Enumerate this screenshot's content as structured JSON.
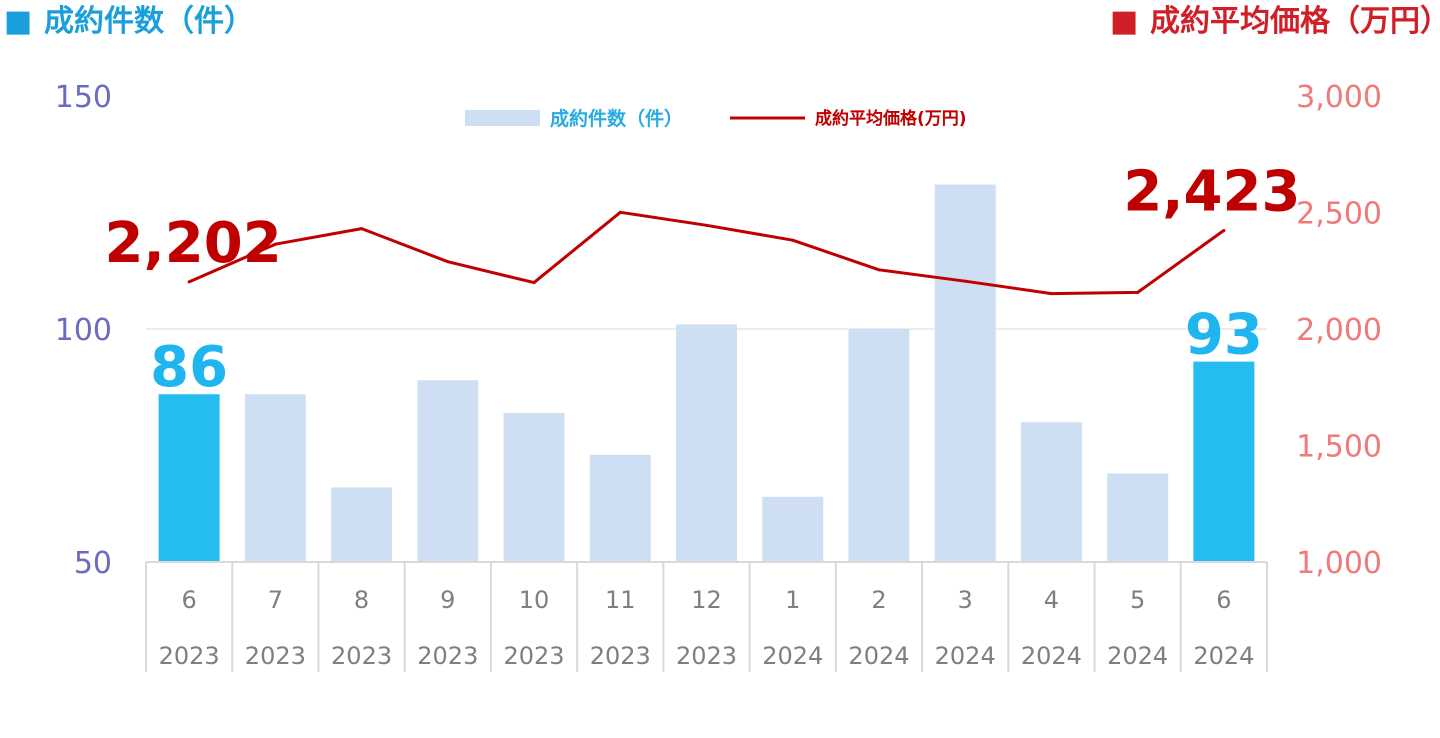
{
  "header": {
    "left_marker": "■",
    "left_title": "成約件数（件）",
    "right_marker": "■",
    "right_title": "成約平均価格（万円）",
    "left_color": "#1a9fdc",
    "right_color": "#d01f26"
  },
  "chart_data": {
    "type": "bar",
    "categories": [
      {
        "month": "6",
        "year": "2023"
      },
      {
        "month": "7",
        "year": "2023"
      },
      {
        "month": "8",
        "year": "2023"
      },
      {
        "month": "9",
        "year": "2023"
      },
      {
        "month": "10",
        "year": "2023"
      },
      {
        "month": "11",
        "year": "2023"
      },
      {
        "month": "12",
        "year": "2023"
      },
      {
        "month": "1",
        "year": "2024"
      },
      {
        "month": "2",
        "year": "2024"
      },
      {
        "month": "3",
        "year": "2024"
      },
      {
        "month": "4",
        "year": "2024"
      },
      {
        "month": "5",
        "year": "2024"
      },
      {
        "month": "6",
        "year": "2024"
      }
    ],
    "series": [
      {
        "name": "成約件数（件）",
        "type": "bar",
        "axis": "left",
        "values": [
          86,
          86,
          66,
          89,
          82,
          73,
          101,
          64,
          100,
          131,
          80,
          69,
          93
        ],
        "color": "#cfdff3",
        "highlight_color": "#25bcf0",
        "highlight_indices": [
          0,
          12
        ]
      },
      {
        "name": "成約平均価格(万円)",
        "type": "line",
        "axis": "right",
        "values": [
          2202,
          2364,
          2431,
          2289,
          2199,
          2501,
          2445,
          2381,
          2254,
          2205,
          2152,
          2157,
          2423
        ],
        "color": "#c00000"
      }
    ],
    "left_axis": {
      "min": 50,
      "max": 150,
      "ticks": [
        "50",
        "100",
        "150"
      ],
      "tick_values": [
        50,
        100,
        150
      ]
    },
    "right_axis": {
      "min": 1000,
      "max": 3000,
      "ticks": [
        "1,000",
        "1,500",
        "2,000",
        "2,500",
        "3,000"
      ],
      "tick_values": [
        1000,
        1500,
        2000,
        2500,
        3000
      ]
    },
    "data_labels": [
      {
        "series": 0,
        "index": 0,
        "text": "86"
      },
      {
        "series": 0,
        "index": 12,
        "text": "93"
      },
      {
        "series": 1,
        "index": 0,
        "text": "2,202"
      },
      {
        "series": 1,
        "index": 12,
        "text": "2,423"
      }
    ],
    "legend": {
      "position": "top"
    },
    "grid": {
      "y": true,
      "gridline_at": 100
    }
  }
}
